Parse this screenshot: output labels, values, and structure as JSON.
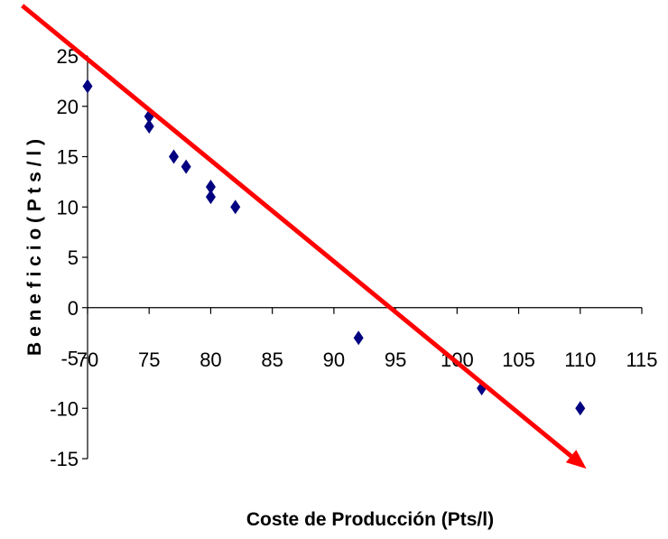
{
  "chart_data": {
    "type": "scatter",
    "title": "",
    "xlabel": "Coste de Producción (Pts/l)",
    "ylabel": "B e n e f i c i o  ( P t s / l )",
    "xlim": [
      70,
      115
    ],
    "ylim": [
      -15,
      25
    ],
    "x_ticks": [
      "70",
      "75",
      "80",
      "85",
      "90",
      "95",
      "100",
      "105",
      "110",
      "115"
    ],
    "y_ticks": [
      "25",
      "20",
      "15",
      "10",
      "5",
      "0",
      "-5",
      "-10",
      "-15"
    ],
    "grid": false,
    "legend": "none",
    "series": [
      {
        "marker": "diamond",
        "color": "#000080",
        "points": [
          {
            "x": 70,
            "y": 22
          },
          {
            "x": 75,
            "y": 19
          },
          {
            "x": 75,
            "y": 18
          },
          {
            "x": 77,
            "y": 15
          },
          {
            "x": 78,
            "y": 14
          },
          {
            "x": 80,
            "y": 12
          },
          {
            "x": 80,
            "y": 11
          },
          {
            "x": 82,
            "y": 10
          },
          {
            "x": 92,
            "y": -3
          },
          {
            "x": 102,
            "y": -8
          },
          {
            "x": 110,
            "y": -10
          }
        ]
      }
    ],
    "trend_arrow": {
      "color": "#ff0000",
      "start": {
        "x": 64.7,
        "y": 30.0
      },
      "end": {
        "x": 110.5,
        "y": -16.0
      }
    }
  }
}
